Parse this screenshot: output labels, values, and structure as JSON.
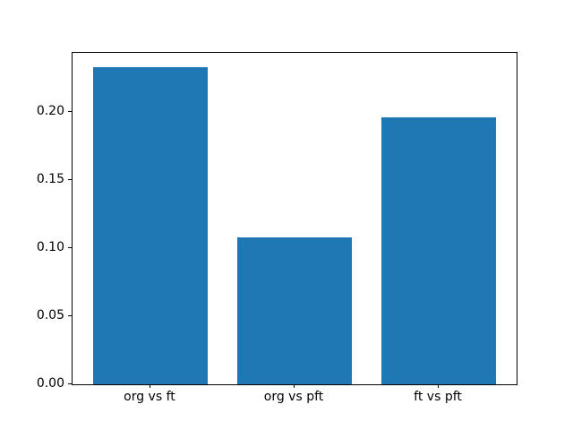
{
  "chart_data": {
    "type": "bar",
    "title": "",
    "xlabel": "",
    "ylabel": "",
    "categories": [
      "org vs ft",
      "org vs pft",
      "ft vs pft"
    ],
    "values": [
      0.233,
      0.108,
      0.196
    ],
    "bar_color": "#1f77b4",
    "bar_width_fraction": 0.8,
    "ylim": [
      0,
      0.2434
    ],
    "yticks": {
      "values": [
        0.0,
        0.05,
        0.1,
        0.15,
        0.2
      ],
      "labels": [
        "0.00",
        "0.05",
        "0.10",
        "0.15",
        "0.20"
      ]
    },
    "grid": false,
    "legend": null,
    "background_color": "#ffffff",
    "axes_edge_color": "#000000"
  }
}
